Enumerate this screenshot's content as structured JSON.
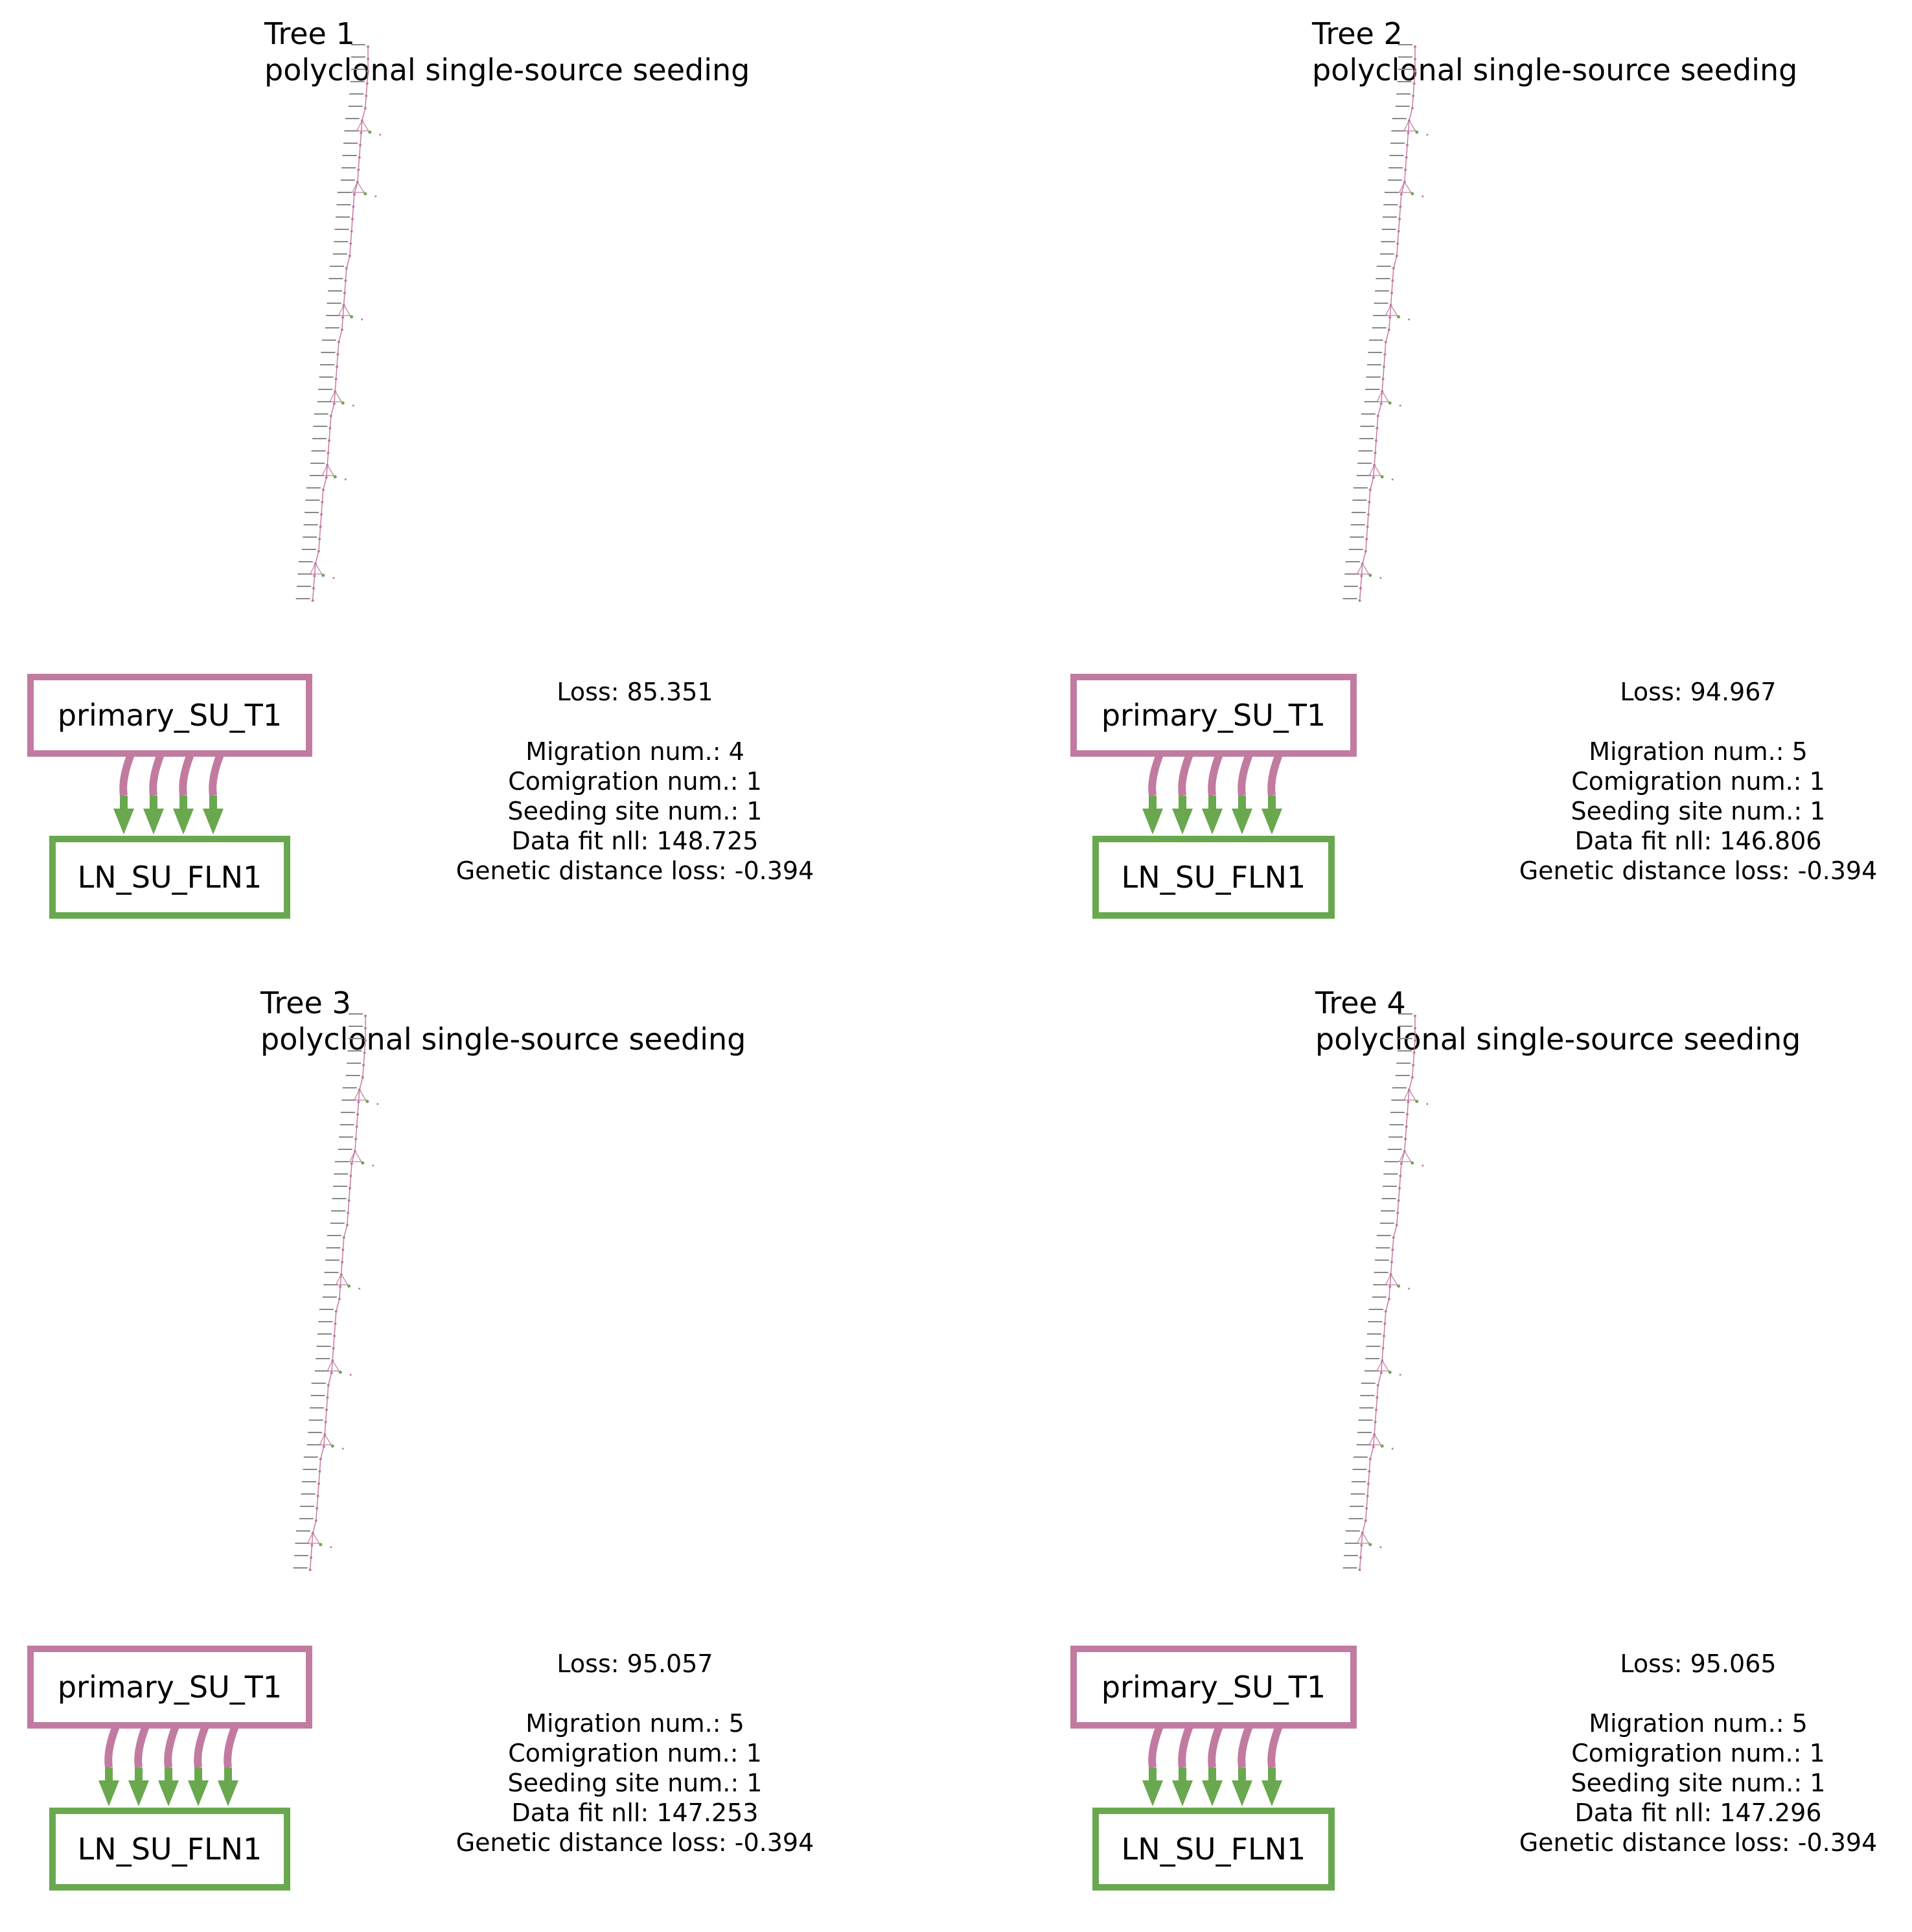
{
  "colors": {
    "primary": "#c27ba0",
    "metastasis": "#6aa84f",
    "node_label": "#888888"
  },
  "panels": [
    {
      "title": "Tree 1",
      "subtitle": "polyclonal single-source seeding",
      "source_site": "primary_SU_T1",
      "target_site": "LN_SU_FLN1",
      "migration_edges": 4,
      "loss": "Loss: 85.351",
      "migration": "Migration num.: 4",
      "comigration": "Comigration num.: 1",
      "seeding": "Seeding site num.: 1",
      "datafit": "Data fit nll: 148.725",
      "gdl": "Genetic distance loss: -0.394"
    },
    {
      "title": "Tree 2",
      "subtitle": "polyclonal single-source seeding",
      "source_site": "primary_SU_T1",
      "target_site": "LN_SU_FLN1",
      "migration_edges": 5,
      "loss": "Loss: 94.967",
      "migration": "Migration num.: 5",
      "comigration": "Comigration num.: 1",
      "seeding": "Seeding site num.: 1",
      "datafit": "Data fit nll: 146.806",
      "gdl": "Genetic distance loss: -0.394"
    },
    {
      "title": "Tree 3",
      "subtitle": "polyclonal single-source seeding",
      "source_site": "primary_SU_T1",
      "target_site": "LN_SU_FLN1",
      "migration_edges": 5,
      "loss": "Loss: 95.057",
      "migration": "Migration num.: 5",
      "comigration": "Comigration num.: 1",
      "seeding": "Seeding site num.: 1",
      "datafit": "Data fit nll: 147.253",
      "gdl": "Genetic distance loss: -0.394"
    },
    {
      "title": "Tree 4",
      "subtitle": "polyclonal single-source seeding",
      "source_site": "primary_SU_T1",
      "target_site": "LN_SU_FLN1",
      "migration_edges": 5,
      "loss": "Loss: 95.065",
      "migration": "Migration num.: 5",
      "comigration": "Comigration num.: 1",
      "seeding": "Seeding site num.: 1",
      "datafit": "Data fit nll: 147.296",
      "gdl": "Genetic distance loss: -0.394"
    }
  ]
}
